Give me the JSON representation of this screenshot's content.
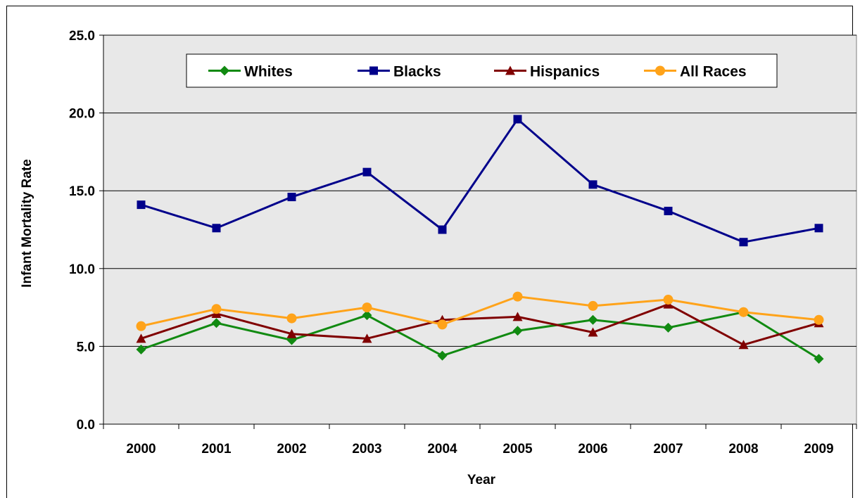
{
  "chart_data": {
    "type": "line",
    "title": "",
    "xlabel": "Year",
    "ylabel": "Infant Mortality Rate",
    "categories": [
      "2000",
      "2001",
      "2002",
      "2003",
      "2004",
      "2005",
      "2006",
      "2007",
      "2008",
      "2009"
    ],
    "ylim": [
      0,
      25
    ],
    "yticks": [
      "0.0",
      "5.0",
      "10.0",
      "15.0",
      "20.0",
      "25.0"
    ],
    "grid": "horizontal",
    "legend_position": "top",
    "plot_background": "#e8e8e8",
    "series": [
      {
        "name": "Whites",
        "color": "#118a11",
        "marker": "diamond",
        "values": [
          4.8,
          6.5,
          5.4,
          7.0,
          4.4,
          6.0,
          6.7,
          6.2,
          7.2,
          4.2
        ]
      },
      {
        "name": "Blacks",
        "color": "#00008b",
        "marker": "square",
        "values": [
          14.1,
          12.6,
          14.6,
          16.2,
          12.5,
          19.6,
          15.4,
          13.7,
          11.7,
          12.6
        ]
      },
      {
        "name": "Hispanics",
        "color": "#800000",
        "marker": "triangle",
        "values": [
          5.5,
          7.1,
          5.8,
          5.5,
          6.7,
          6.9,
          5.9,
          7.7,
          5.1,
          6.5
        ]
      },
      {
        "name": "All Races",
        "color": "#ffa31a",
        "marker": "circle",
        "values": [
          6.3,
          7.4,
          6.8,
          7.5,
          6.4,
          8.2,
          7.6,
          8.0,
          7.2,
          6.7
        ]
      }
    ]
  }
}
